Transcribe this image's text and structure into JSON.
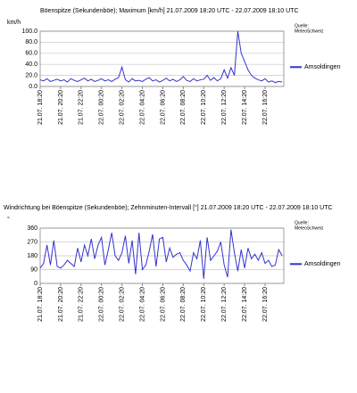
{
  "chart_data": [
    {
      "type": "line",
      "title": "Böenspitze (Sekundenböe); Maximum [km/h]  21.07.2009 18:20 UTC - 22.07.2009 18:10 UTC",
      "y_label": "km/h",
      "source": [
        "Quelle:",
        "MeteoSchweiz"
      ],
      "categories": [
        "21.07. 18:20",
        null,
        null,
        null,
        null,
        null,
        "21.07. 20:20",
        null,
        null,
        null,
        null,
        null,
        "21.07. 22:20",
        null,
        null,
        null,
        null,
        null,
        "22.07. 00:20",
        null,
        null,
        null,
        null,
        null,
        "22.07. 02:20",
        null,
        null,
        null,
        null,
        null,
        "22.07. 04:20",
        null,
        null,
        null,
        null,
        null,
        "22.07. 06:20",
        null,
        null,
        null,
        null,
        null,
        "22.07. 08:20",
        null,
        null,
        null,
        null,
        null,
        "22.07. 10:20",
        null,
        null,
        null,
        null,
        null,
        "22.07. 12:20",
        null,
        null,
        null,
        null,
        null,
        "22.07. 14:20",
        null,
        null,
        null,
        null,
        null,
        "22.07. 16:20",
        null,
        null,
        null,
        null,
        null
      ],
      "series": [
        {
          "name": "Amsoldingen",
          "color": "#3333cc",
          "values": [
            12,
            10,
            14,
            9,
            11,
            13,
            10,
            12,
            8,
            14,
            11,
            9,
            12,
            15,
            10,
            13,
            9,
            11,
            14,
            10,
            12,
            9,
            13,
            16,
            35,
            12,
            8,
            14,
            10,
            11,
            9,
            13,
            16,
            10,
            12,
            8,
            11,
            15,
            10,
            13,
            9,
            12,
            18,
            11,
            9,
            14,
            10,
            12,
            13,
            20,
            11,
            16,
            10,
            14,
            30,
            15,
            34,
            20,
            100,
            60,
            45,
            30,
            20,
            15,
            12,
            10,
            14,
            8,
            10,
            7,
            9,
            8
          ]
        }
      ],
      "ylim": [
        0,
        100
      ],
      "yticks": [
        {
          "value": 0,
          "label": "0.0"
        },
        {
          "value": 20,
          "label": "20.0"
        },
        {
          "value": 40,
          "label": "40.0"
        },
        {
          "value": 60,
          "label": "60.0"
        },
        {
          "value": 80,
          "label": "80.0"
        },
        {
          "value": 100,
          "label": "100.0"
        }
      ],
      "grid": true
    },
    {
      "type": "line",
      "title": "Windrichtung bei Böenspitze (Sekundenböe); Zehnminuten-Intervall [°]  21.07.2009 18:20 UTC - 22.07.2009 18:10 UTC",
      "y_label": "°",
      "source": [
        "Quelle:",
        "MeteoSchweiz"
      ],
      "categories": [
        "21.07. 18:20",
        null,
        null,
        null,
        null,
        null,
        "21.07. 20:20",
        null,
        null,
        null,
        null,
        null,
        "21.07. 22:20",
        null,
        null,
        null,
        null,
        null,
        "22.07. 00:20",
        null,
        null,
        null,
        null,
        null,
        "22.07. 02:20",
        null,
        null,
        null,
        null,
        null,
        "22.07. 04:20",
        null,
        null,
        null,
        null,
        null,
        "22.07. 06:20",
        null,
        null,
        null,
        null,
        null,
        "22.07. 08:20",
        null,
        null,
        null,
        null,
        null,
        "22.07. 10:20",
        null,
        null,
        null,
        null,
        null,
        "22.07. 12:20",
        null,
        null,
        null,
        null,
        null,
        "22.07. 14:20",
        null,
        null,
        null,
        null,
        null,
        "22.07. 16:20",
        null,
        null,
        null,
        null,
        null
      ],
      "series": [
        {
          "name": "Amsoldingen",
          "color": "#3333cc",
          "values": [
            100,
            130,
            250,
            120,
            280,
            110,
            100,
            120,
            150,
            130,
            110,
            230,
            140,
            250,
            180,
            290,
            160,
            250,
            300,
            120,
            220,
            330,
            180,
            150,
            200,
            310,
            130,
            280,
            60,
            330,
            90,
            120,
            210,
            320,
            110,
            290,
            300,
            140,
            230,
            170,
            190,
            200,
            150,
            120,
            80,
            200,
            160,
            280,
            30,
            300,
            150,
            180,
            210,
            270,
            120,
            40,
            350,
            200,
            80,
            220,
            100,
            230,
            160,
            190,
            150,
            200,
            130,
            150,
            110,
            120,
            220,
            180
          ]
        }
      ],
      "ylim": [
        0,
        360
      ],
      "yticks": [
        0,
        90,
        180,
        270,
        360
      ],
      "grid": true
    }
  ]
}
